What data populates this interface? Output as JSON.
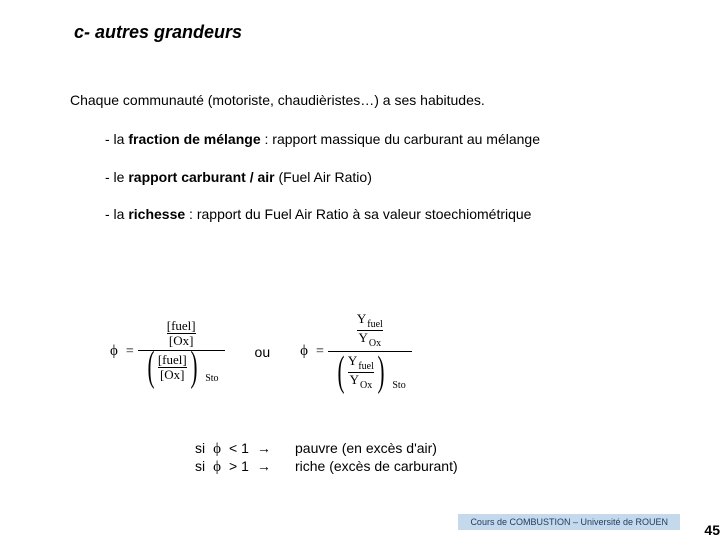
{
  "title": "c- autres grandeurs",
  "intro": "Chaque communauté (motoriste, chaudièristes…) a ses habitudes.",
  "bullets": [
    {
      "prefix": "- la ",
      "bold": "fraction de mélange",
      "rest": " : rapport massique du carburant au mélange"
    },
    {
      "prefix": "- le ",
      "bold": "rapport carburant / air",
      "rest": " (Fuel Air Ratio)"
    },
    {
      "prefix": "- la ",
      "bold": "richesse",
      "rest": " : rapport du Fuel Air Ratio à sa valeur stoechiométrique"
    }
  ],
  "formula": {
    "phi": "ϕ",
    "eq": "=",
    "fuel": "[fuel]",
    "ox": "[Ox]",
    "yfuel": "Y",
    "yfuel_sub": "fuel",
    "yox": "Y",
    "yox_sub": "Ox",
    "sto": "Sto",
    "ou": "ou"
  },
  "conditions": [
    {
      "si": "si",
      "phi": "ϕ",
      "op": "< 1",
      "arrow": "→",
      "label": "pauvre (en excès d'air)"
    },
    {
      "si": "si",
      "phi": "ϕ",
      "op": "> 1",
      "arrow": "→",
      "label": "riche (excès de carburant)"
    }
  ],
  "footer": "Cours de COMBUSTION – Université de ROUEN",
  "page": "45",
  "colors": {
    "footer_bg": "#c5d9ec",
    "footer_text": "#1f3a5f",
    "text": "#000000",
    "bg": "#ffffff"
  }
}
